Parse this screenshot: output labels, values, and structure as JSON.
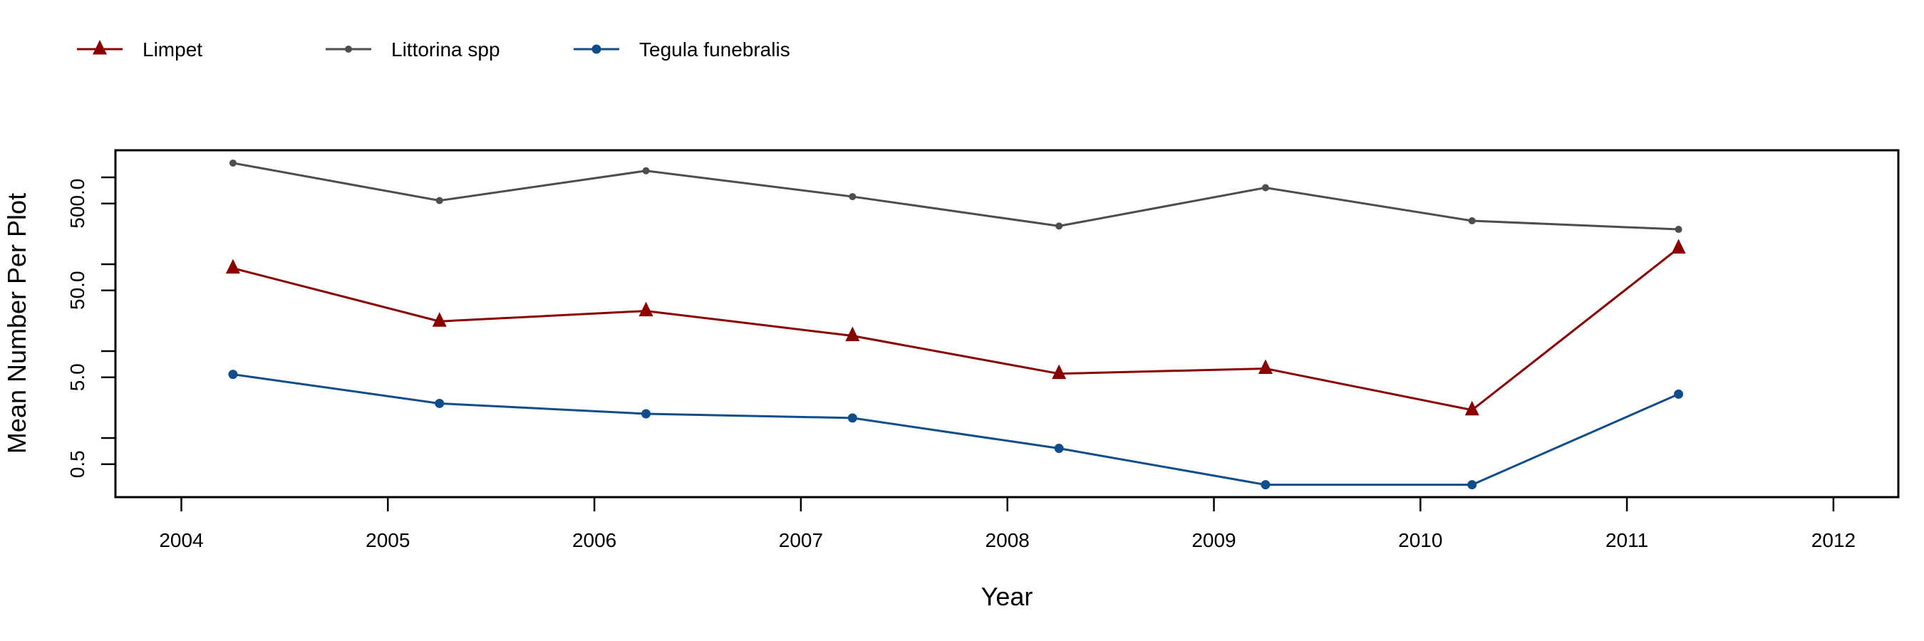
{
  "chart_data": {
    "type": "line",
    "title": "",
    "xlabel": "Year",
    "ylabel": "Mean Number Per Plot",
    "xlim": [
      2003.7,
      2012.3
    ],
    "ylim_log10": [
      -0.75,
      3.42
    ],
    "y_scale": "log",
    "x_ticks": [
      2004,
      2005,
      2006,
      2007,
      2008,
      2009,
      2010,
      2011,
      2012
    ],
    "x_tick_labels": [
      "2004",
      "2005",
      "2006",
      "2007",
      "2008",
      "2009",
      "2010",
      "2011",
      "2012"
    ],
    "y_ticks": [
      0.5,
      1,
      5,
      10,
      50,
      100,
      500,
      1000
    ],
    "y_tick_labels": [
      {
        "value": 0.5,
        "label": "0.5"
      },
      {
        "value": 5,
        "label": "5.0"
      },
      {
        "value": 50,
        "label": "50.0"
      },
      {
        "value": 500,
        "label": "500.0"
      }
    ],
    "legend_placement": "top-left, outside",
    "x": [
      2004.25,
      2005.25,
      2006.25,
      2007.25,
      2008.25,
      2009.25,
      2010.25,
      2011.25
    ],
    "series": [
      {
        "name": "Limpet",
        "color": "#8B0000",
        "marker": "triangle",
        "values": [
          90,
          22,
          29,
          15,
          5.5,
          6.3,
          2.1,
          153
        ]
      },
      {
        "name": "Littorina spp",
        "color": "#4D4D4D",
        "marker": "small-circle",
        "values": [
          1460,
          540,
          1190,
          600,
          275,
          760,
          316,
          252
        ]
      },
      {
        "name": "Tegula funebralis",
        "color": "#104E8B",
        "marker": "circle",
        "values": [
          5.4,
          2.5,
          1.9,
          1.7,
          0.76,
          0.29,
          0.29,
          3.2
        ]
      }
    ]
  }
}
